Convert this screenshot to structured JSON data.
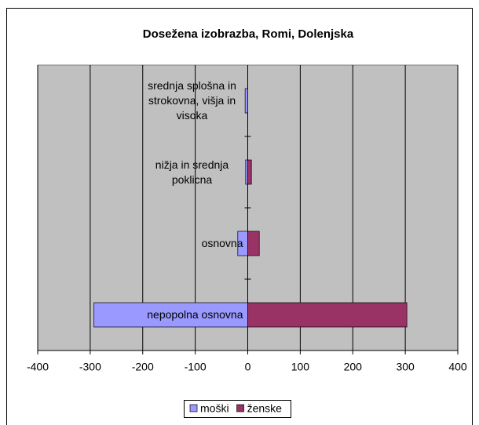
{
  "chart_data": {
    "type": "bar",
    "orientation": "horizontal",
    "title": "Doseženа izobrazba, Romi, Dolenjska",
    "categories": [
      "nepopolna osnovna",
      "osnovna",
      "nižja in srednja poklicna",
      "srednja splošna in strokovna, višja in visoka"
    ],
    "series": [
      {
        "name": "moški",
        "color": "#9999ff",
        "values": [
          -293,
          -19,
          -4,
          -5
        ]
      },
      {
        "name": "ženske",
        "color": "#993366",
        "values": [
          303,
          22,
          7,
          0
        ]
      }
    ],
    "xlim": [
      -400,
      400
    ],
    "xticks": [
      -400,
      -300,
      -200,
      -100,
      0,
      100,
      200,
      300,
      400
    ],
    "grid": true,
    "legend": "bottom"
  }
}
